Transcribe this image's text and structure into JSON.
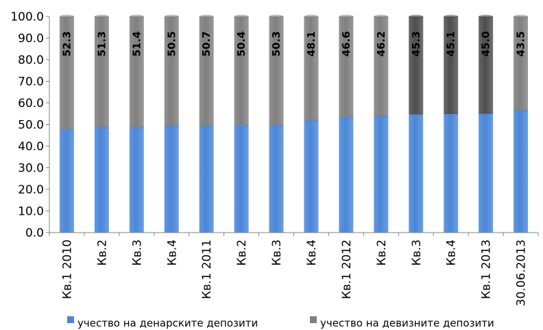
{
  "chart_data": {
    "type": "bar",
    "stacked": true,
    "categories": [
      "Кв.1 2010",
      "Кв.2",
      "Кв.3",
      "Кв.4",
      "Кв.1 2011",
      "Кв.2",
      "Кв.3",
      "Кв.4",
      "Кв.1 2012",
      "Кв.2",
      "Кв.3",
      "Кв.4",
      "Кв.1 2013",
      "30.06.2013"
    ],
    "series": [
      {
        "name": "учество на денарските депозити",
        "values": [
          47.7,
          48.7,
          48.6,
          49.5,
          49.3,
          49.6,
          49.7,
          51.9,
          53.4,
          53.8,
          54.7,
          54.9,
          55.0,
          56.5
        ],
        "color": "#4a86d8"
      },
      {
        "name": "учество на девизните депозити",
        "values": [
          52.3,
          51.3,
          51.4,
          50.5,
          50.7,
          50.4,
          50.3,
          48.1,
          46.6,
          46.2,
          45.3,
          45.1,
          45.0,
          43.5
        ],
        "color": "#7f7f7f",
        "colors": [
          "#7f7f7f",
          "#7f7f7f",
          "#7f7f7f",
          "#7f7f7f",
          "#7f7f7f",
          "#7f7f7f",
          "#7f7f7f",
          "#7f7f7f",
          "#7f7f7f",
          "#7f7f7f",
          "#4d4d4d",
          "#4d4d4d",
          "#4d4d4d",
          "#7f7f7f"
        ],
        "labels": [
          "52.3",
          "51.3",
          "51.4",
          "50.5",
          "50.7",
          "50.4",
          "50.3",
          "48.1",
          "46.6",
          "46.2",
          "45.3",
          "45.1",
          "45.0",
          "43.5"
        ]
      }
    ],
    "ylim": [
      0,
      100
    ],
    "yticks": [
      "0.0",
      "10.0",
      "20.0",
      "30.0",
      "40.0",
      "50.0",
      "60.0",
      "70.0",
      "80.0",
      "90.0",
      "100.0"
    ],
    "legend_position": "bottom",
    "grid": false
  }
}
